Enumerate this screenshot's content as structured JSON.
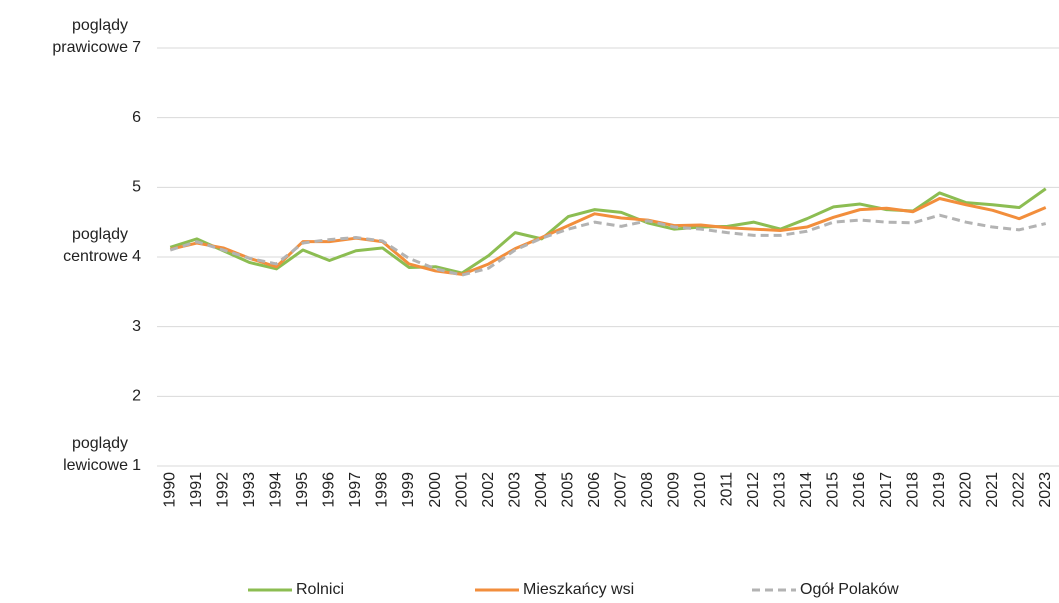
{
  "chart_data": {
    "type": "line",
    "annotations": [
      "poglądy prawicowe",
      "poglądy centrowe",
      "poglądy lewicowe"
    ],
    "categories": [
      "1990",
      "1991",
      "1992",
      "1993",
      "1994",
      "1995",
      "1996",
      "1997",
      "1998",
      "1999",
      "2000",
      "2001",
      "2002",
      "2003",
      "2004",
      "2005",
      "2006",
      "2007",
      "2008",
      "2009",
      "2010",
      "2011",
      "2012",
      "2013",
      "2014",
      "2015",
      "2016",
      "2017",
      "2018",
      "2019",
      "2020",
      "2021",
      "2022",
      "2023"
    ],
    "series": [
      {
        "name": "Rolnici",
        "color": "#8cbd52",
        "dashed": false,
        "values": [
          4.14,
          4.26,
          4.09,
          3.92,
          3.83,
          4.1,
          3.95,
          4.09,
          4.13,
          3.85,
          3.86,
          3.77,
          4.02,
          4.35,
          4.26,
          4.58,
          4.68,
          4.64,
          4.49,
          4.4,
          4.43,
          4.44,
          4.5,
          4.4,
          4.55,
          4.72,
          4.76,
          4.68,
          4.66,
          4.92,
          4.78,
          4.75,
          4.71,
          4.98
        ]
      },
      {
        "name": "Mieszkańcy wsi",
        "color": "#f28e3c",
        "dashed": false,
        "values": [
          4.11,
          4.2,
          4.13,
          3.98,
          3.86,
          4.22,
          4.22,
          4.27,
          4.22,
          3.9,
          3.8,
          3.75,
          3.9,
          4.12,
          4.28,
          4.45,
          4.62,
          4.56,
          4.53,
          4.45,
          4.46,
          4.42,
          4.4,
          4.38,
          4.43,
          4.57,
          4.68,
          4.7,
          4.65,
          4.84,
          4.75,
          4.67,
          4.55,
          4.71
        ]
      },
      {
        "name": "Ogół Polaków",
        "color": "#b3b3b3",
        "dashed": true,
        "values": [
          4.1,
          4.22,
          4.1,
          3.98,
          3.9,
          4.2,
          4.25,
          4.28,
          4.23,
          3.98,
          3.83,
          3.74,
          3.84,
          4.1,
          4.27,
          4.4,
          4.5,
          4.44,
          4.52,
          4.43,
          4.4,
          4.35,
          4.31,
          4.31,
          4.37,
          4.5,
          4.53,
          4.5,
          4.49,
          4.6,
          4.5,
          4.43,
          4.39,
          4.48
        ]
      }
    ],
    "ylim": [
      1,
      7
    ],
    "yticks": [
      1,
      2,
      3,
      4,
      5,
      6,
      7
    ],
    "grid": true,
    "legend": "bottom"
  }
}
